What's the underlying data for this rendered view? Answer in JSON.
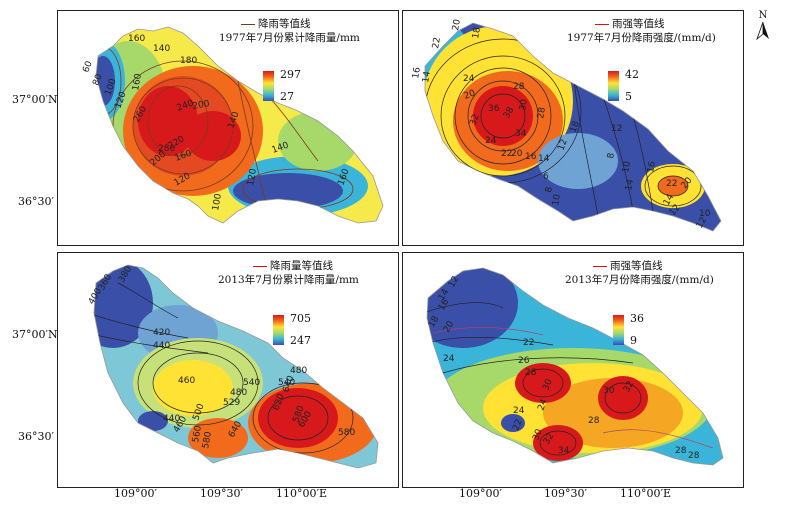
{
  "panels": [
    {
      "id": "p1",
      "legend_line": "降雨等值线",
      "legend_title": "1977年7月份累计降雨量/mm",
      "scale_max": "297",
      "scale_min": "27",
      "contour_labels": [
        "160",
        "140",
        "180",
        "60",
        "80",
        "100",
        "120",
        "160",
        "260",
        "240",
        "200",
        "280",
        "220",
        "160",
        "140",
        "140",
        "200",
        "120",
        "120",
        "100",
        "160"
      ]
    },
    {
      "id": "p2",
      "legend_line": "雨强等值线",
      "legend_title": "1977年7月份降雨强度/(mm/d)",
      "scale_max": "42",
      "scale_min": "5",
      "contour_labels": [
        "20",
        "18",
        "22",
        "16",
        "14",
        "24",
        "28",
        "20",
        "36",
        "38",
        "32",
        "30",
        "28",
        "34",
        "24",
        "22",
        "20",
        "16",
        "14",
        "12",
        "18",
        "12",
        "8",
        "6",
        "8",
        "10",
        "10",
        "14",
        "16",
        "22",
        "20",
        "14",
        "12",
        "10",
        "12"
      ]
    },
    {
      "id": "p3",
      "legend_line": "降雨量等值线",
      "legend_title": "2013年7月份累计降雨量/mm",
      "scale_max": "705",
      "scale_min": "247",
      "contour_labels": [
        "380",
        "360",
        "400",
        "420",
        "440",
        "460",
        "540",
        "480",
        "529",
        "480",
        "540",
        "640",
        "620",
        "580",
        "600",
        "500",
        "440",
        "460",
        "580",
        "640",
        "560",
        "580"
      ]
    },
    {
      "id": "p4",
      "legend_line": "雨强等值线",
      "legend_title": "2013年7月份降雨强度/(mm/d)",
      "scale_max": "36",
      "scale_min": "9",
      "contour_labels": [
        "12",
        "14",
        "16",
        "18",
        "20",
        "22",
        "24",
        "26",
        "28",
        "30",
        "24",
        "30",
        "32",
        "24",
        "22",
        "28",
        "30",
        "32",
        "34",
        "28",
        "28"
      ]
    }
  ],
  "axes": {
    "y_ticks": [
      "37°00′N",
      "36°30′"
    ],
    "x_ticks": [
      "109°00′",
      "109°30′",
      "110°00′E"
    ]
  },
  "north_label": "N",
  "colors": {
    "high": "#d7191c",
    "mid": "#ffe234",
    "low": "#3a4fa8",
    "contour_brown": "#7a3a1a",
    "contour_dark": "#222222"
  }
}
